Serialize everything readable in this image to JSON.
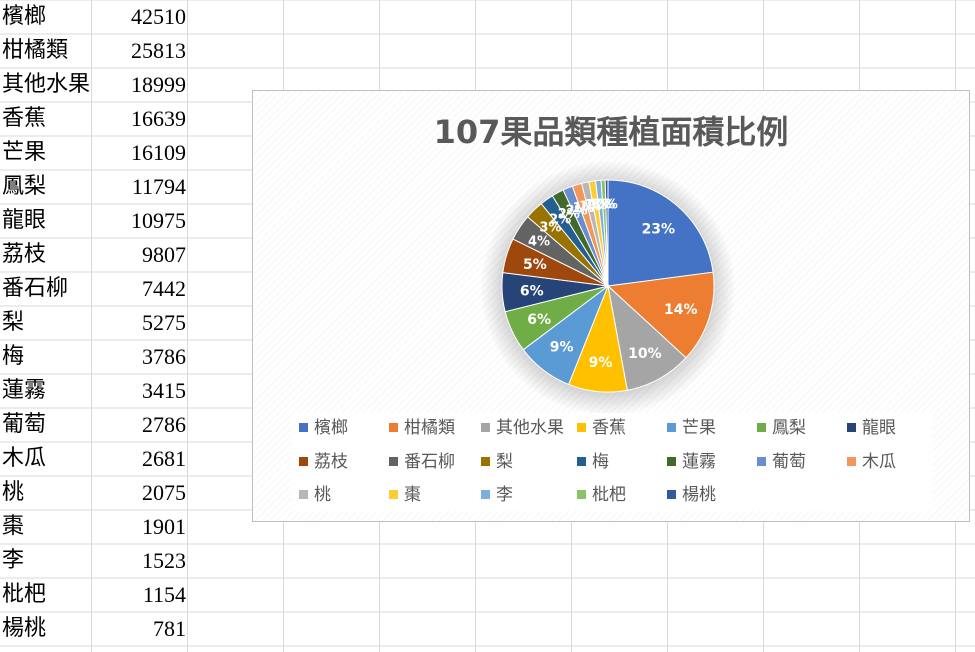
{
  "sheet": {
    "rows": [
      {
        "name": "檳榔",
        "value": "42510"
      },
      {
        "name": "柑橘類",
        "value": "25813"
      },
      {
        "name": "其他水果",
        "value": "18999"
      },
      {
        "name": "香蕉",
        "value": "16639"
      },
      {
        "name": "芒果",
        "value": "16109"
      },
      {
        "name": "鳳梨",
        "value": "11794"
      },
      {
        "name": "龍眼",
        "value": "10975"
      },
      {
        "name": "荔枝",
        "value": "9807"
      },
      {
        "name": "番石柳",
        "value": "7442"
      },
      {
        "name": "梨",
        "value": "5275"
      },
      {
        "name": "梅",
        "value": "3786"
      },
      {
        "name": "蓮霧",
        "value": "3415"
      },
      {
        "name": "葡萄",
        "value": "2786"
      },
      {
        "name": "木瓜",
        "value": "2681"
      },
      {
        "name": "桃",
        "value": "2075"
      },
      {
        "name": "棗",
        "value": "1901"
      },
      {
        "name": "李",
        "value": "1523"
      },
      {
        "name": "枇杷",
        "value": "1154"
      },
      {
        "name": "楊桃",
        "value": "781"
      }
    ]
  },
  "chart_data": {
    "type": "pie",
    "title": "107果品類種植面積比例",
    "categories": [
      "檳榔",
      "柑橘類",
      "其他水果",
      "香蕉",
      "芒果",
      "鳳梨",
      "龍眼",
      "荔枝",
      "番石柳",
      "梨",
      "梅",
      "蓮霧",
      "葡萄",
      "木瓜",
      "桃",
      "棗",
      "李",
      "枇杷",
      "楊桃"
    ],
    "values": [
      42510,
      25813,
      18999,
      16639,
      16109,
      11794,
      10975,
      9807,
      7442,
      5275,
      3786,
      3415,
      2786,
      2681,
      2075,
      1901,
      1523,
      1154,
      781
    ],
    "data_labels": [
      "23%",
      "14%",
      "10%",
      "9%",
      "9%",
      "6%",
      "6%",
      "5%",
      "4%",
      "3%",
      "2%",
      "2%",
      "2%",
      "1%",
      "1%",
      "1%",
      "1%",
      "1%",
      "0%"
    ],
    "colors": [
      "#4472c4",
      "#ed7d31",
      "#a5a5a5",
      "#ffc000",
      "#5b9bd5",
      "#70ad47",
      "#264478",
      "#9e480e",
      "#636363",
      "#997300",
      "#255e91",
      "#43682b",
      "#698ed0",
      "#f1975a",
      "#b7b7b7",
      "#ffcd33",
      "#7cafdd",
      "#8cc168",
      "#335aa1"
    ],
    "legend_position": "bottom"
  }
}
